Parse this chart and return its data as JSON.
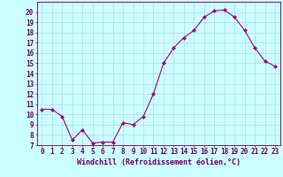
{
  "x": [
    0,
    1,
    2,
    3,
    4,
    5,
    6,
    7,
    8,
    9,
    10,
    11,
    12,
    13,
    14,
    15,
    16,
    17,
    18,
    19,
    20,
    21,
    22,
    23
  ],
  "y": [
    10.5,
    10.5,
    9.8,
    7.5,
    8.5,
    7.2,
    7.3,
    7.3,
    9.2,
    9.0,
    9.8,
    12.0,
    15.0,
    16.5,
    17.5,
    18.2,
    19.5,
    20.1,
    20.2,
    19.5,
    18.2,
    16.5,
    15.2,
    14.7
  ],
  "line_color": "#990099",
  "marker": "D",
  "marker_size": 2,
  "bg_color": "#ccffff",
  "grid_color": "#aadddd",
  "ylim": [
    7,
    21
  ],
  "xlim": [
    -0.5,
    23.5
  ],
  "yticks": [
    7,
    8,
    9,
    10,
    11,
    12,
    13,
    14,
    15,
    16,
    17,
    18,
    19,
    20
  ],
  "xticks": [
    0,
    1,
    2,
    3,
    4,
    5,
    6,
    7,
    8,
    9,
    10,
    11,
    12,
    13,
    14,
    15,
    16,
    17,
    18,
    19,
    20,
    21,
    22,
    23
  ],
  "xlabel": "Windchill (Refroidissement éolien,°C)",
  "xlabel_fontsize": 6,
  "tick_fontsize": 5.5,
  "tick_color": "#660066",
  "axis_color": "#660066",
  "line_width": 0.8
}
